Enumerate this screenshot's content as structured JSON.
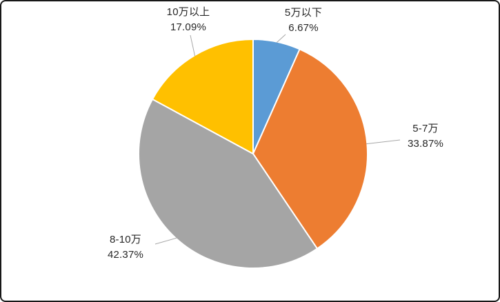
{
  "chart_data": {
    "type": "pie",
    "title": "",
    "categories": [
      "5万以下",
      "5-7万",
      "8-10万",
      "10万以上"
    ],
    "values": [
      6.67,
      33.87,
      42.37,
      17.09
    ],
    "percent_labels": [
      "6.67%",
      "33.87%",
      "42.37%",
      "17.09%"
    ],
    "colors": [
      "#5B9BD5",
      "#ED7D31",
      "#A5A5A5",
      "#FFC000"
    ],
    "start_angle_deg": 0,
    "direction": "clockwise",
    "legend": false,
    "data_label_style": "category name and percentage outside the pie with leader lines",
    "leader_line_color": "#A6A6A6",
    "label_text_color": "#262626",
    "slice_separator_color": "#FFFFFF",
    "background": "#FFFFFF",
    "frame_border_color": "#171717"
  }
}
